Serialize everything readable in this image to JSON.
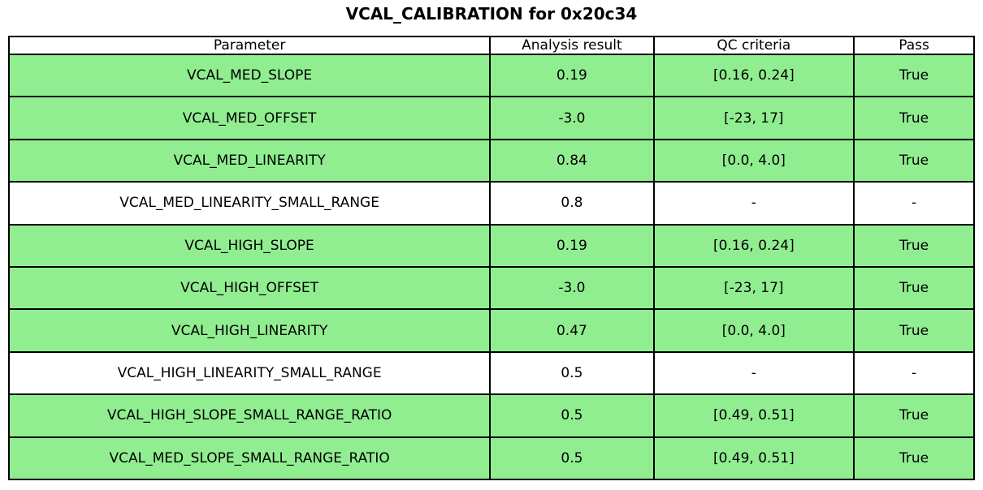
{
  "chart_data": {
    "type": "table",
    "title": "VCAL_CALIBRATION for 0x20c34",
    "columns": [
      "Parameter",
      "Analysis result",
      "QC criteria",
      "Pass"
    ],
    "rows": [
      {
        "parameter": "VCAL_MED_SLOPE",
        "analysis_result": "0.19",
        "qc_criteria": "[0.16, 0.24]",
        "pass": "True",
        "highlight": true
      },
      {
        "parameter": "VCAL_MED_OFFSET",
        "analysis_result": "-3.0",
        "qc_criteria": "[-23, 17]",
        "pass": "True",
        "highlight": true
      },
      {
        "parameter": "VCAL_MED_LINEARITY",
        "analysis_result": "0.84",
        "qc_criteria": "[0.0, 4.0]",
        "pass": "True",
        "highlight": true
      },
      {
        "parameter": "VCAL_MED_LINEARITY_SMALL_RANGE",
        "analysis_result": "0.8",
        "qc_criteria": "-",
        "pass": "-",
        "highlight": false
      },
      {
        "parameter": "VCAL_HIGH_SLOPE",
        "analysis_result": "0.19",
        "qc_criteria": "[0.16, 0.24]",
        "pass": "True",
        "highlight": true
      },
      {
        "parameter": "VCAL_HIGH_OFFSET",
        "analysis_result": "-3.0",
        "qc_criteria": "[-23, 17]",
        "pass": "True",
        "highlight": true
      },
      {
        "parameter": "VCAL_HIGH_LINEARITY",
        "analysis_result": "0.47",
        "qc_criteria": "[0.0, 4.0]",
        "pass": "True",
        "highlight": true
      },
      {
        "parameter": "VCAL_HIGH_LINEARITY_SMALL_RANGE",
        "analysis_result": "0.5",
        "qc_criteria": "-",
        "pass": "-",
        "highlight": false
      },
      {
        "parameter": "VCAL_HIGH_SLOPE_SMALL_RANGE_RATIO",
        "analysis_result": "0.5",
        "qc_criteria": "[0.49, 0.51]",
        "pass": "True",
        "highlight": true
      },
      {
        "parameter": "VCAL_MED_SLOPE_SMALL_RANGE_RATIO",
        "analysis_result": "0.5",
        "qc_criteria": "[0.49, 0.51]",
        "pass": "True",
        "highlight": true
      }
    ],
    "layout": {
      "legend": "none",
      "grid": "table-borders"
    },
    "colors": {
      "pass_row_background": "#90EE90",
      "neutral_row_background": "#FFFFFF",
      "border": "#000000",
      "text": "#000000"
    }
  }
}
